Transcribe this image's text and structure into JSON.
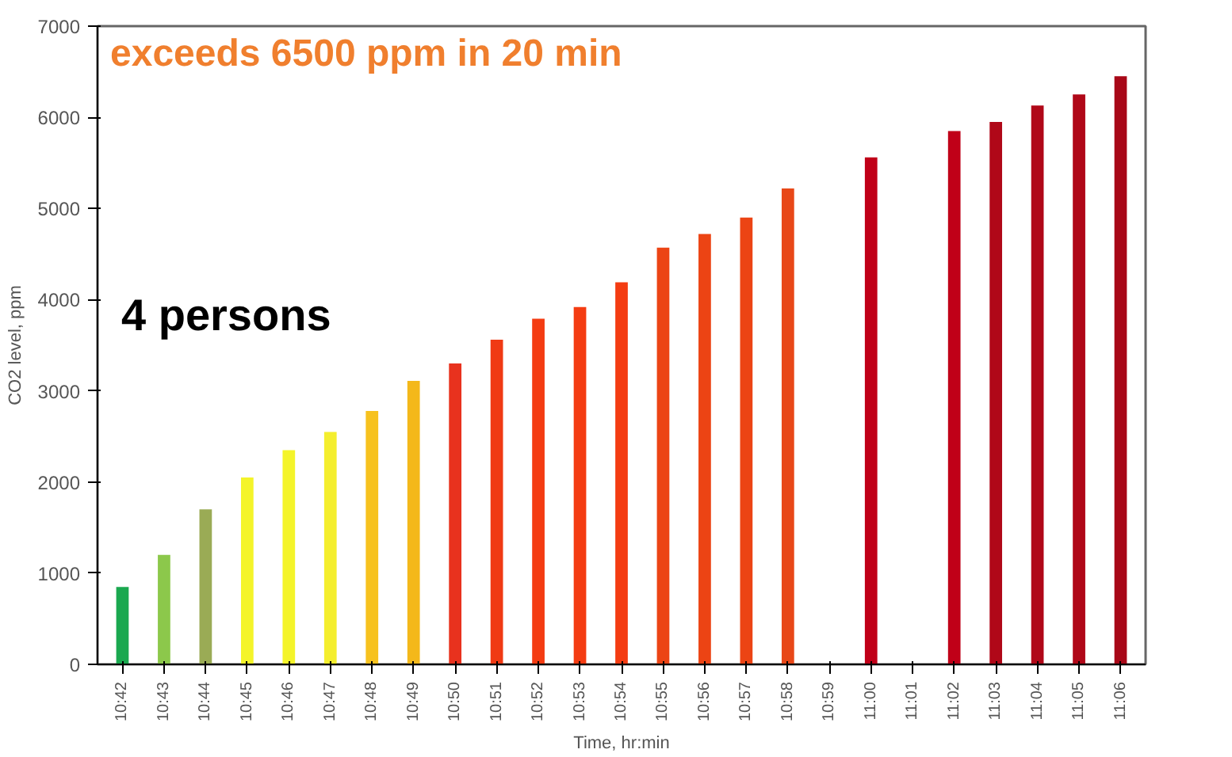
{
  "chart_data": {
    "type": "bar",
    "xlabel": "Time, hr:min",
    "ylabel": "CO2 level, ppm",
    "categories": [
      "10:42",
      "10:43",
      "10:44",
      "10:45",
      "10:46",
      "10:47",
      "10:48",
      "10:49",
      "10:50",
      "10:51",
      "10:52",
      "10:53",
      "10:54",
      "10:55",
      "10:56",
      "10:57",
      "10:58",
      "10:59",
      "11:00",
      "11:01",
      "11:02",
      "11:03",
      "11:04",
      "11:05",
      "11:06"
    ],
    "values": [
      850,
      1200,
      1700,
      2050,
      2350,
      2550,
      2780,
      3110,
      3300,
      3560,
      3790,
      3920,
      4190,
      4570,
      4720,
      4900,
      5220,
      null,
      5560,
      null,
      5850,
      5950,
      6130,
      6250,
      6450
    ],
    "colors": [
      "#1aa84f",
      "#8cc84b",
      "#9aab55",
      "#f4f42a",
      "#f4f42a",
      "#f4ee2e",
      "#f7c21e",
      "#f4b81a",
      "#e8321e",
      "#f03a14",
      "#f43c12",
      "#f43c12",
      "#f43c12",
      "#ec4414",
      "#ec4414",
      "#ec4414",
      "#e84818",
      "#c00018",
      "#c00018",
      "#c00018",
      "#c00018",
      "#b00818",
      "#b00818",
      "#b00818",
      "#a80818"
    ],
    "ylim": [
      0,
      7000
    ],
    "yticks": [
      0,
      1000,
      2000,
      3000,
      4000,
      5000,
      6000,
      7000
    ],
    "grid": false,
    "annotations": [
      "exceeds 6500 ppm in 20 min",
      "4 persons"
    ]
  }
}
